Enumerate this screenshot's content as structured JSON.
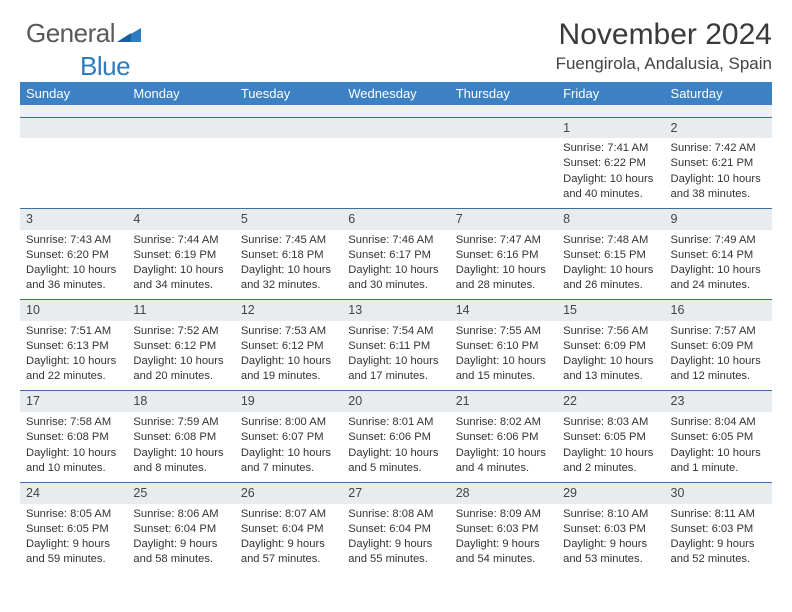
{
  "brand": {
    "name_part1": "General",
    "name_part2": "Blue"
  },
  "header": {
    "month_title": "November 2024",
    "location": "Fuengirola, Andalusia, Spain"
  },
  "colors": {
    "header_bg": "#3b81c3",
    "header_text": "#ffffff",
    "daynum_bg": "#e9ecef",
    "rule": "#3b6fa3",
    "brand_blue": "#2e7cc0",
    "text": "#333333"
  },
  "weekdays": [
    "Sunday",
    "Monday",
    "Tuesday",
    "Wednesday",
    "Thursday",
    "Friday",
    "Saturday"
  ],
  "weeks": [
    [
      {
        "n": "",
        "lines": []
      },
      {
        "n": "",
        "lines": []
      },
      {
        "n": "",
        "lines": []
      },
      {
        "n": "",
        "lines": []
      },
      {
        "n": "",
        "lines": []
      },
      {
        "n": "1",
        "lines": [
          "Sunrise: 7:41 AM",
          "Sunset: 6:22 PM",
          "Daylight: 10 hours and 40 minutes."
        ]
      },
      {
        "n": "2",
        "lines": [
          "Sunrise: 7:42 AM",
          "Sunset: 6:21 PM",
          "Daylight: 10 hours and 38 minutes."
        ]
      }
    ],
    [
      {
        "n": "3",
        "lines": [
          "Sunrise: 7:43 AM",
          "Sunset: 6:20 PM",
          "Daylight: 10 hours and 36 minutes."
        ]
      },
      {
        "n": "4",
        "lines": [
          "Sunrise: 7:44 AM",
          "Sunset: 6:19 PM",
          "Daylight: 10 hours and 34 minutes."
        ]
      },
      {
        "n": "5",
        "lines": [
          "Sunrise: 7:45 AM",
          "Sunset: 6:18 PM",
          "Daylight: 10 hours and 32 minutes."
        ]
      },
      {
        "n": "6",
        "lines": [
          "Sunrise: 7:46 AM",
          "Sunset: 6:17 PM",
          "Daylight: 10 hours and 30 minutes."
        ]
      },
      {
        "n": "7",
        "lines": [
          "Sunrise: 7:47 AM",
          "Sunset: 6:16 PM",
          "Daylight: 10 hours and 28 minutes."
        ]
      },
      {
        "n": "8",
        "lines": [
          "Sunrise: 7:48 AM",
          "Sunset: 6:15 PM",
          "Daylight: 10 hours and 26 minutes."
        ]
      },
      {
        "n": "9",
        "lines": [
          "Sunrise: 7:49 AM",
          "Sunset: 6:14 PM",
          "Daylight: 10 hours and 24 minutes."
        ]
      }
    ],
    [
      {
        "n": "10",
        "lines": [
          "Sunrise: 7:51 AM",
          "Sunset: 6:13 PM",
          "Daylight: 10 hours and 22 minutes."
        ]
      },
      {
        "n": "11",
        "lines": [
          "Sunrise: 7:52 AM",
          "Sunset: 6:12 PM",
          "Daylight: 10 hours and 20 minutes."
        ]
      },
      {
        "n": "12",
        "lines": [
          "Sunrise: 7:53 AM",
          "Sunset: 6:12 PM",
          "Daylight: 10 hours and 19 minutes."
        ]
      },
      {
        "n": "13",
        "lines": [
          "Sunrise: 7:54 AM",
          "Sunset: 6:11 PM",
          "Daylight: 10 hours and 17 minutes."
        ]
      },
      {
        "n": "14",
        "lines": [
          "Sunrise: 7:55 AM",
          "Sunset: 6:10 PM",
          "Daylight: 10 hours and 15 minutes."
        ]
      },
      {
        "n": "15",
        "lines": [
          "Sunrise: 7:56 AM",
          "Sunset: 6:09 PM",
          "Daylight: 10 hours and 13 minutes."
        ]
      },
      {
        "n": "16",
        "lines": [
          "Sunrise: 7:57 AM",
          "Sunset: 6:09 PM",
          "Daylight: 10 hours and 12 minutes."
        ]
      }
    ],
    [
      {
        "n": "17",
        "lines": [
          "Sunrise: 7:58 AM",
          "Sunset: 6:08 PM",
          "Daylight: 10 hours and 10 minutes."
        ]
      },
      {
        "n": "18",
        "lines": [
          "Sunrise: 7:59 AM",
          "Sunset: 6:08 PM",
          "Daylight: 10 hours and 8 minutes."
        ]
      },
      {
        "n": "19",
        "lines": [
          "Sunrise: 8:00 AM",
          "Sunset: 6:07 PM",
          "Daylight: 10 hours and 7 minutes."
        ]
      },
      {
        "n": "20",
        "lines": [
          "Sunrise: 8:01 AM",
          "Sunset: 6:06 PM",
          "Daylight: 10 hours and 5 minutes."
        ]
      },
      {
        "n": "21",
        "lines": [
          "Sunrise: 8:02 AM",
          "Sunset: 6:06 PM",
          "Daylight: 10 hours and 4 minutes."
        ]
      },
      {
        "n": "22",
        "lines": [
          "Sunrise: 8:03 AM",
          "Sunset: 6:05 PM",
          "Daylight: 10 hours and 2 minutes."
        ]
      },
      {
        "n": "23",
        "lines": [
          "Sunrise: 8:04 AM",
          "Sunset: 6:05 PM",
          "Daylight: 10 hours and 1 minute."
        ]
      }
    ],
    [
      {
        "n": "24",
        "lines": [
          "Sunrise: 8:05 AM",
          "Sunset: 6:05 PM",
          "Daylight: 9 hours and 59 minutes."
        ]
      },
      {
        "n": "25",
        "lines": [
          "Sunrise: 8:06 AM",
          "Sunset: 6:04 PM",
          "Daylight: 9 hours and 58 minutes."
        ]
      },
      {
        "n": "26",
        "lines": [
          "Sunrise: 8:07 AM",
          "Sunset: 6:04 PM",
          "Daylight: 9 hours and 57 minutes."
        ]
      },
      {
        "n": "27",
        "lines": [
          "Sunrise: 8:08 AM",
          "Sunset: 6:04 PM",
          "Daylight: 9 hours and 55 minutes."
        ]
      },
      {
        "n": "28",
        "lines": [
          "Sunrise: 8:09 AM",
          "Sunset: 6:03 PM",
          "Daylight: 9 hours and 54 minutes."
        ]
      },
      {
        "n": "29",
        "lines": [
          "Sunrise: 8:10 AM",
          "Sunset: 6:03 PM",
          "Daylight: 9 hours and 53 minutes."
        ]
      },
      {
        "n": "30",
        "lines": [
          "Sunrise: 8:11 AM",
          "Sunset: 6:03 PM",
          "Daylight: 9 hours and 52 minutes."
        ]
      }
    ]
  ]
}
